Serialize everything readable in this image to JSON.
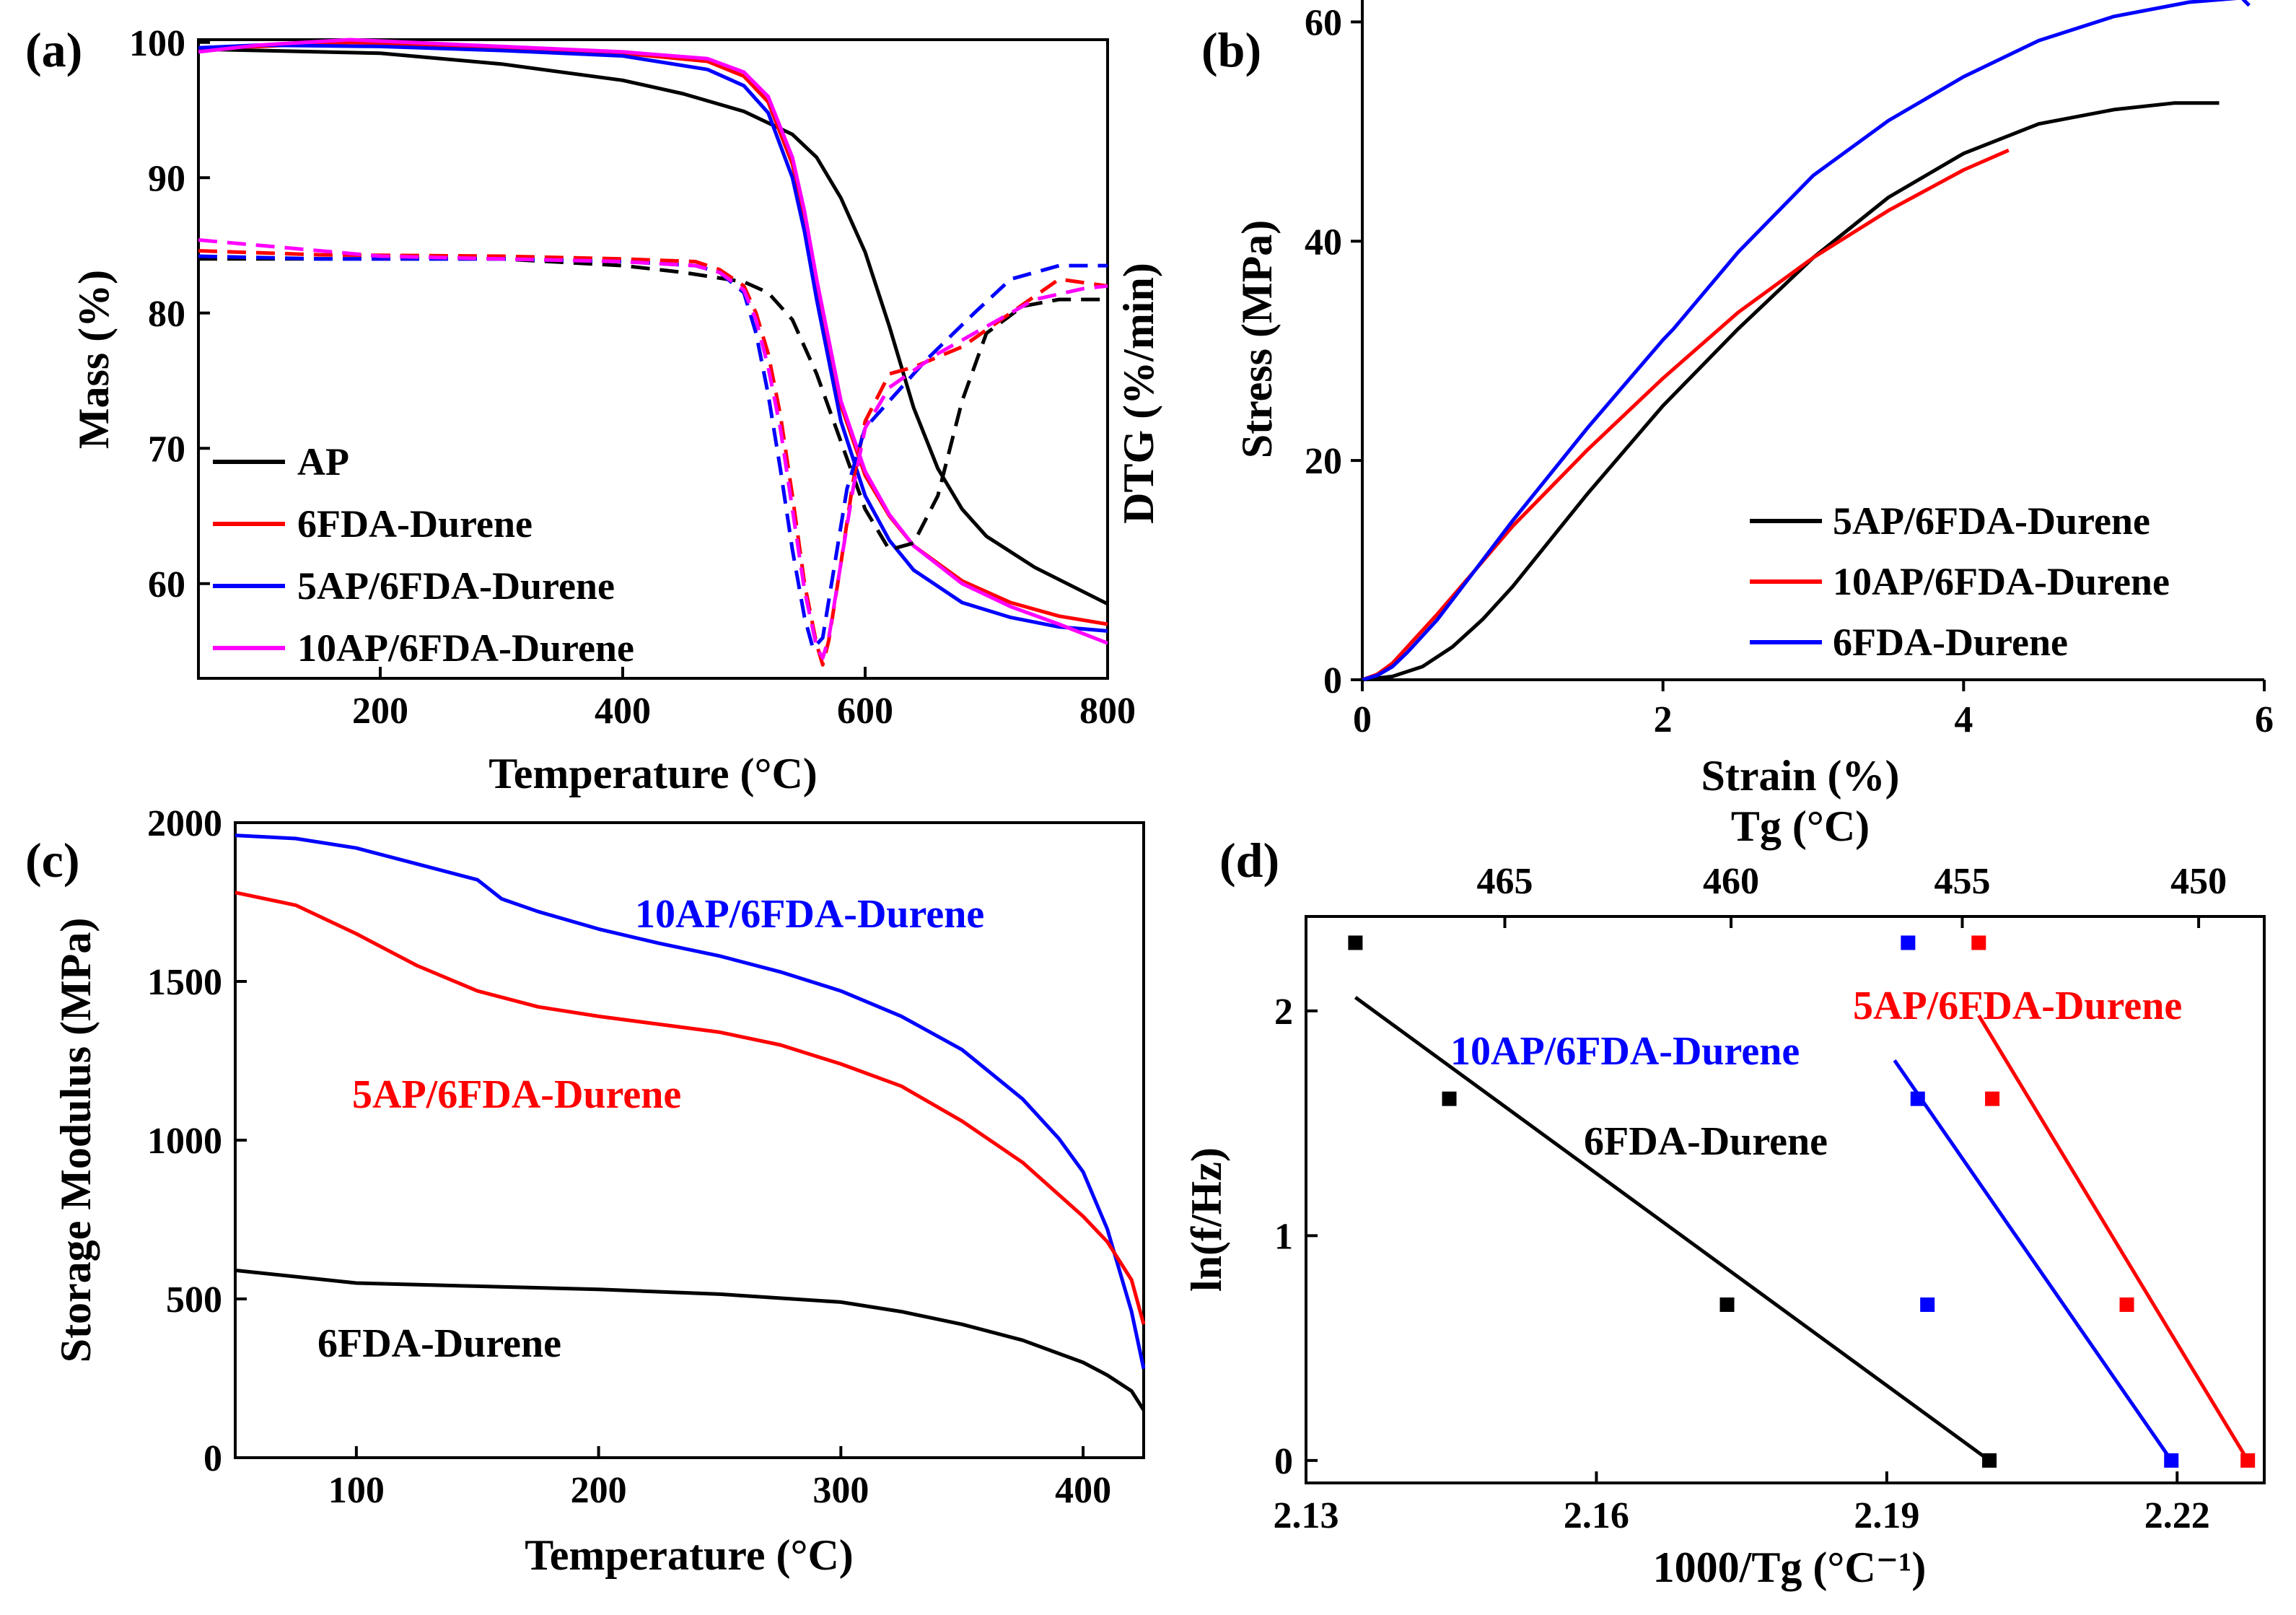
{
  "chart_data": [
    {
      "panel": "(a)",
      "type": "line",
      "xlabel": "Temperature (°C)",
      "ylabel": "Mass (%)",
      "y2label": "DTG (%/min)",
      "xlim": [
        50,
        800
      ],
      "ylim": [
        53,
        100.2
      ],
      "xticks": [
        200,
        400,
        600,
        800
      ],
      "yticks": [
        60,
        70,
        80,
        90,
        100
      ],
      "legend_position": "bottom-left",
      "series": [
        {
          "name": "AP",
          "color": "#000000",
          "style": "solid",
          "x": [
            50,
            100,
            200,
            300,
            400,
            450,
            500,
            540,
            560,
            580,
            600,
            620,
            640,
            660,
            680,
            700,
            740,
            800
          ],
          "y": [
            99.5,
            99.4,
            99.2,
            98.4,
            97.2,
            96.2,
            94.9,
            93.2,
            91.5,
            88.5,
            84.5,
            79,
            73,
            68.5,
            65.5,
            63.5,
            61.2,
            58.5
          ]
        },
        {
          "name": "6FDA-Durene",
          "color": "#ff0000",
          "style": "solid",
          "x": [
            50,
            100,
            175,
            300,
            400,
            470,
            500,
            520,
            540,
            550,
            560,
            570,
            580,
            600,
            620,
            640,
            680,
            720,
            760,
            800
          ],
          "y": [
            99.6,
            99.7,
            100,
            99.6,
            99.2,
            98.6,
            97.5,
            95.6,
            91,
            87,
            82.2,
            77.5,
            73.2,
            68,
            65,
            62.8,
            60.2,
            58.6,
            57.6,
            57
          ]
        },
        {
          "name": "5AP/6FDA-Durene",
          "color": "#0000ff",
          "style": "solid",
          "x": [
            50,
            100,
            200,
            300,
            400,
            470,
            500,
            520,
            540,
            550,
            560,
            570,
            580,
            600,
            620,
            640,
            680,
            720,
            760,
            800
          ],
          "y": [
            99.6,
            99.8,
            99.7,
            99.4,
            99,
            98,
            96.8,
            94.8,
            90,
            86,
            81,
            76.5,
            72,
            66.5,
            63.2,
            61,
            58.6,
            57.5,
            56.8,
            56.5
          ]
        },
        {
          "name": "10AP/6FDA-Durene",
          "color": "#ff00ff",
          "style": "solid",
          "x": [
            50,
            100,
            175,
            300,
            400,
            470,
            500,
            520,
            540,
            550,
            560,
            570,
            580,
            600,
            620,
            640,
            680,
            720,
            760,
            800
          ],
          "y": [
            99.3,
            99.8,
            100.2,
            99.7,
            99.3,
            98.8,
            97.8,
            96,
            91.5,
            87.5,
            82.5,
            78,
            73.5,
            68.3,
            65.1,
            62.8,
            60,
            58.3,
            57,
            55.6
          ]
        },
        {
          "name": "AP DTG",
          "color": "#000000",
          "style": "dashed",
          "x": [
            50,
            150,
            300,
            400,
            450,
            500,
            520,
            540,
            560,
            580,
            600,
            620,
            640,
            660,
            680,
            700,
            730,
            760,
            800
          ],
          "y": [
            84,
            84,
            84,
            83.5,
            83,
            82.3,
            81.5,
            79.5,
            75.5,
            70.5,
            65.5,
            62.5,
            63,
            66.5,
            73.5,
            78.5,
            80.5,
            81,
            81
          ]
        },
        {
          "name": "6FDA-Durene DTG",
          "color": "#ff0000",
          "style": "dashed",
          "x": [
            50,
            150,
            300,
            400,
            460,
            480,
            500,
            510,
            520,
            530,
            540,
            550,
            560,
            565,
            570,
            580,
            590,
            600,
            620,
            640,
            680,
            720,
            760,
            800
          ],
          "y": [
            84.6,
            84.3,
            84.2,
            84,
            83.8,
            83.2,
            82,
            80,
            77,
            72.5,
            66.5,
            60,
            55.5,
            54,
            55.8,
            61.5,
            67.5,
            72,
            75.5,
            76,
            77.5,
            80,
            82.5,
            82
          ]
        },
        {
          "name": "5AP/6FDA-Durene DTG",
          "color": "#0000ff",
          "style": "dashed",
          "x": [
            50,
            150,
            300,
            400,
            460,
            480,
            500,
            510,
            520,
            530,
            540,
            550,
            557,
            565,
            575,
            585,
            600,
            620,
            650,
            690,
            720,
            760,
            800
          ],
          "y": [
            84.2,
            84,
            84,
            83.8,
            83.5,
            83,
            81.5,
            78.5,
            74,
            68.5,
            62.5,
            57.5,
            55.2,
            56,
            61.5,
            67,
            71.5,
            73.5,
            76.5,
            80,
            82.5,
            83.5,
            83.5
          ]
        },
        {
          "name": "10AP/6FDA-Durene DTG",
          "color": "#ff00ff",
          "style": "dashed",
          "x": [
            50,
            100,
            200,
            300,
            400,
            460,
            480,
            500,
            510,
            520,
            530,
            540,
            550,
            560,
            565,
            570,
            580,
            590,
            600,
            620,
            660,
            700,
            740,
            780,
            800
          ],
          "y": [
            85.4,
            85,
            84.2,
            84,
            83.8,
            83.5,
            83,
            81.7,
            79.5,
            76,
            71.5,
            65.5,
            59.5,
            55.3,
            54.5,
            56,
            61.5,
            67,
            71.5,
            74.5,
            77,
            79,
            81,
            81.8,
            82
          ]
        }
      ]
    },
    {
      "panel": "(b)",
      "type": "line",
      "xlabel": "Strain (%)",
      "ylabel": "Stress (MPa)",
      "xlim": [
        0,
        6
      ],
      "ylim": [
        0,
        62
      ],
      "xticks": [
        0,
        2,
        4,
        6
      ],
      "yticks": [
        0,
        20,
        40,
        60
      ],
      "legend_position": "bottom-right",
      "series": [
        {
          "name": "5AP/6FDA-Durene",
          "color": "#000000",
          "x": [
            0,
            0.2,
            0.4,
            0.6,
            0.8,
            1,
            1.5,
            2,
            2.5,
            3,
            3.5,
            4,
            4.5,
            5,
            5.4,
            5.7
          ],
          "y": [
            0,
            0.3,
            1.2,
            3,
            5.5,
            8.5,
            17,
            25,
            32,
            38.5,
            44,
            48,
            50.7,
            52,
            52.6,
            52.6
          ]
        },
        {
          "name": "10AP/6FDA-Durene",
          "color": "#ff0000",
          "x": [
            0,
            0.1,
            0.2,
            0.3,
            0.5,
            0.75,
            1,
            1.5,
            2,
            2.5,
            3,
            3.5,
            4,
            4.3
          ],
          "y": [
            0,
            0.5,
            1.5,
            3,
            6,
            10,
            14,
            21,
            27.5,
            33.5,
            38.5,
            42.8,
            46.5,
            48.3
          ]
        },
        {
          "name": "6FDA-Durene",
          "color": "#0000ff",
          "x": [
            0,
            0.1,
            0.2,
            0.3,
            0.5,
            0.75,
            1,
            1.5,
            2,
            2.07,
            2.5,
            3,
            3.5,
            4,
            4.5,
            5,
            5.5,
            5.85,
            5.9
          ],
          "y": [
            0,
            0.4,
            1.2,
            2.5,
            5.5,
            10,
            14.5,
            23,
            31,
            32,
            39,
            46,
            51,
            55,
            58.3,
            60.5,
            61.8,
            62.2,
            61.5
          ]
        }
      ]
    },
    {
      "panel": "(c)",
      "type": "line",
      "xlabel": "Temperature (°C)",
      "ylabel": "Storage Modulus (MPa)",
      "xlim": [
        50,
        425
      ],
      "ylim": [
        0,
        2000
      ],
      "xticks": [
        100,
        200,
        300,
        400
      ],
      "yticks": [
        0,
        500,
        1000,
        1500,
        2000
      ],
      "series": [
        {
          "name": "10AP/6FDA-Durene",
          "color": "#0000ff",
          "x": [
            50,
            75,
            100,
            125,
            150,
            160,
            175,
            200,
            225,
            250,
            275,
            300,
            325,
            350,
            375,
            390,
            400,
            410,
            420,
            425
          ],
          "y": [
            1960,
            1950,
            1920,
            1870,
            1820,
            1760,
            1720,
            1665,
            1620,
            1580,
            1530,
            1470,
            1390,
            1285,
            1130,
            1005,
            900,
            720,
            460,
            280
          ]
        },
        {
          "name": "5AP/6FDA-Durene",
          "color": "#ff0000",
          "x": [
            50,
            75,
            100,
            125,
            150,
            175,
            200,
            250,
            275,
            300,
            325,
            350,
            375,
            400,
            410,
            420,
            425
          ],
          "y": [
            1780,
            1740,
            1650,
            1550,
            1470,
            1420,
            1390,
            1340,
            1300,
            1240,
            1170,
            1060,
            930,
            760,
            680,
            560,
            420
          ]
        },
        {
          "name": "6FDA-Durene",
          "color": "#000000",
          "x": [
            50,
            100,
            150,
            200,
            250,
            300,
            325,
            350,
            375,
            400,
            410,
            420,
            425
          ],
          "y": [
            590,
            550,
            540,
            530,
            515,
            490,
            460,
            420,
            370,
            300,
            260,
            210,
            150
          ]
        }
      ]
    },
    {
      "panel": "(d)",
      "type": "scatter",
      "xlabel": "1000/Tg (°C⁻¹)",
      "x2label": "Tg (°C)",
      "ylabel": "ln(f/Hz)",
      "xlim": [
        2.13,
        2.229
      ],
      "ylim": [
        -0.1,
        2.42
      ],
      "xticks": [
        2.13,
        2.16,
        2.19,
        2.22
      ],
      "x2ticks": [
        465,
        460,
        455,
        450
      ],
      "yticks": [
        0,
        1,
        2
      ],
      "series": [
        {
          "name": "6FDA-Durene",
          "color": "#000000",
          "x": [
            2.1351,
            2.1448,
            2.1735,
            2.2006
          ],
          "y": [
            2.303,
            1.609,
            0.693,
            0.0
          ],
          "fit": [
            [
              2.1351,
              2.06
            ],
            [
              2.2006,
              0.0
            ]
          ]
        },
        {
          "name": "10AP/6FDA-Durene",
          "color": "#0000ff",
          "x": [
            2.1922,
            2.1932,
            2.1942,
            2.2194
          ],
          "y": [
            2.303,
            1.609,
            0.693,
            0.0
          ],
          "fit": [
            [
              2.1908,
              1.78
            ],
            [
              2.2194,
              0.0
            ]
          ]
        },
        {
          "name": "5AP/6FDA-Durene",
          "color": "#ff0000",
          "x": [
            2.1995,
            2.2009,
            2.2148,
            2.2273
          ],
          "y": [
            2.303,
            1.609,
            0.693,
            0.0
          ],
          "fit": [
            [
              2.1995,
              1.98
            ],
            [
              2.2273,
              0.0
            ]
          ]
        }
      ]
    }
  ]
}
